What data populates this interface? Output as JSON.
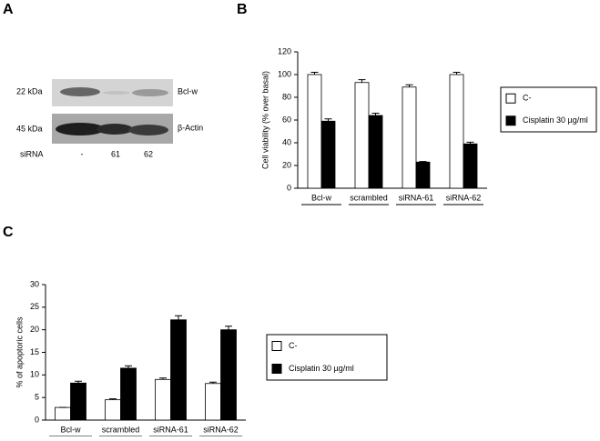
{
  "panel_labels": [
    "A",
    "B",
    "C"
  ],
  "blot": {
    "markers": [
      "22 kDa",
      "45 kDa"
    ],
    "proteins": [
      "Bcl-w",
      "β-Actin"
    ],
    "lane_title": "siRNA",
    "lanes": [
      "-",
      "61",
      "62"
    ]
  },
  "chart_data": [
    {
      "type": "bar",
      "y_label": "Cell viability (% over basal)",
      "categories": [
        "Bcl-w",
        "scrambled",
        "siRNA-61",
        "siRNA-62"
      ],
      "series": [
        {
          "name": "C-",
          "color": "#ffffff",
          "values": [
            100,
            93,
            89,
            100
          ],
          "errors": [
            2,
            2.5,
            2,
            2
          ]
        },
        {
          "name": "Cisplatin 30 µg/ml",
          "color": "#000000",
          "values": [
            59,
            64,
            23,
            39
          ],
          "errors": [
            2,
            2,
            0.5,
            1.5
          ]
        }
      ],
      "ylim": [
        0,
        120
      ],
      "yticks": [
        0,
        20,
        40,
        60,
        80,
        100,
        120
      ],
      "legend": "right"
    },
    {
      "type": "bar",
      "y_label": "% of apoptoric cells",
      "categories": [
        "Bcl-w",
        "scrambled",
        "siRNA-61",
        "siRNA-62"
      ],
      "series": [
        {
          "name": "C-",
          "color": "#ffffff",
          "values": [
            2.8,
            4.5,
            9,
            8.1
          ],
          "errors": [
            0,
            0.2,
            0.3,
            0.3
          ]
        },
        {
          "name": "Cisplatin 30 µg/ml",
          "color": "#000000",
          "values": [
            8.2,
            11.5,
            22.2,
            20
          ],
          "errors": [
            0.4,
            0.5,
            0.9,
            0.8
          ]
        }
      ],
      "ylim": [
        0,
        30
      ],
      "yticks": [
        0,
        5,
        10,
        15,
        20,
        25,
        30
      ],
      "legend": "right"
    }
  ]
}
